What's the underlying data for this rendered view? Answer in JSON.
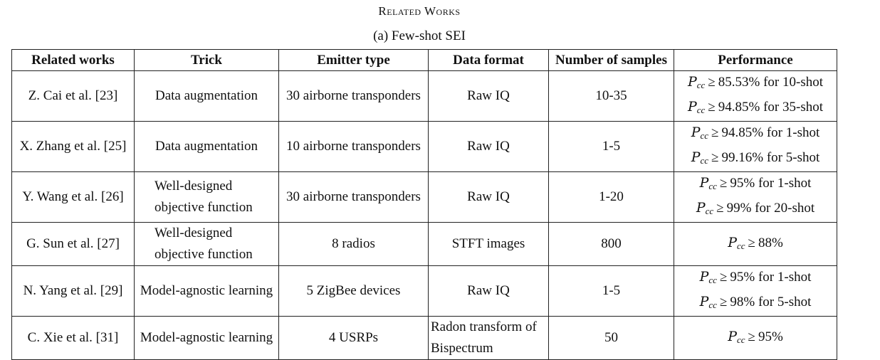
{
  "caption": {
    "title": "Related Works",
    "subtitle": "(a) Few-shot SEI"
  },
  "table": {
    "headers": [
      "Related works",
      "Trick",
      "Emitter type",
      "Data format",
      "Number of samples",
      "Performance"
    ],
    "rows": [
      {
        "related_work": "Z. Cai et al. [23]",
        "trick": "Data augmentation",
        "emitter_type": "30 airborne transponders",
        "data_format": "Raw IQ",
        "samples": "10-35",
        "performance": [
          {
            "lhs": "P",
            "sub": "cc",
            "rel": "≥",
            "value": "85.53%",
            "suffix": " for 10-shot"
          },
          {
            "lhs": "P",
            "sub": "cc",
            "rel": "≥",
            "value": "94.85%",
            "suffix": " for 35-shot"
          }
        ]
      },
      {
        "related_work": "X. Zhang et al. [25]",
        "trick": "Data augmentation",
        "emitter_type": "10 airborne transponders",
        "data_format": "Raw IQ",
        "samples": "1-5",
        "performance": [
          {
            "lhs": "P",
            "sub": "cc",
            "rel": "≥",
            "value": "94.85%",
            "suffix": " for 1-shot"
          },
          {
            "lhs": "P",
            "sub": "cc",
            "rel": "≥",
            "value": "99.16%",
            "suffix": " for 5-shot"
          }
        ]
      },
      {
        "related_work": "Y. Wang et al. [26]",
        "trick": "Well-designed objective function",
        "emitter_type": "30 airborne transponders",
        "data_format": "Raw IQ",
        "samples": "1-20",
        "performance": [
          {
            "lhs": "P",
            "sub": "cc",
            "rel": "≥",
            "value": "95%",
            "suffix": " for 1-shot"
          },
          {
            "lhs": "P",
            "sub": "cc",
            "rel": "≥",
            "value": "99%",
            "suffix": " for 20-shot"
          }
        ]
      },
      {
        "related_work": "G. Sun et al. [27]",
        "trick": "Well-designed objective function",
        "emitter_type": "8 radios",
        "data_format": "STFT images",
        "samples": "800",
        "performance": [
          {
            "lhs": "P",
            "sub": "cc",
            "rel": "≥",
            "value": "88%",
            "suffix": ""
          }
        ]
      },
      {
        "related_work": "N. Yang et al. [29]",
        "trick": "Model-agnostic learning",
        "emitter_type": "5 ZigBee devices",
        "data_format": "Raw IQ",
        "samples": "1-5",
        "performance": [
          {
            "lhs": "P",
            "sub": "cc",
            "rel": "≥",
            "value": "95%",
            "suffix": " for 1-shot"
          },
          {
            "lhs": "P",
            "sub": "cc",
            "rel": "≥",
            "value": "98%",
            "suffix": " for 5-shot"
          }
        ]
      },
      {
        "related_work": "C. Xie et al. [31]",
        "trick": "Model-agnostic learning",
        "emitter_type": "4 USRPs",
        "data_format": "Radon transform of Bispectrum",
        "samples": "50",
        "performance": [
          {
            "lhs": "P",
            "sub": "cc",
            "rel": "≥",
            "value": "95%",
            "suffix": ""
          }
        ]
      }
    ]
  }
}
